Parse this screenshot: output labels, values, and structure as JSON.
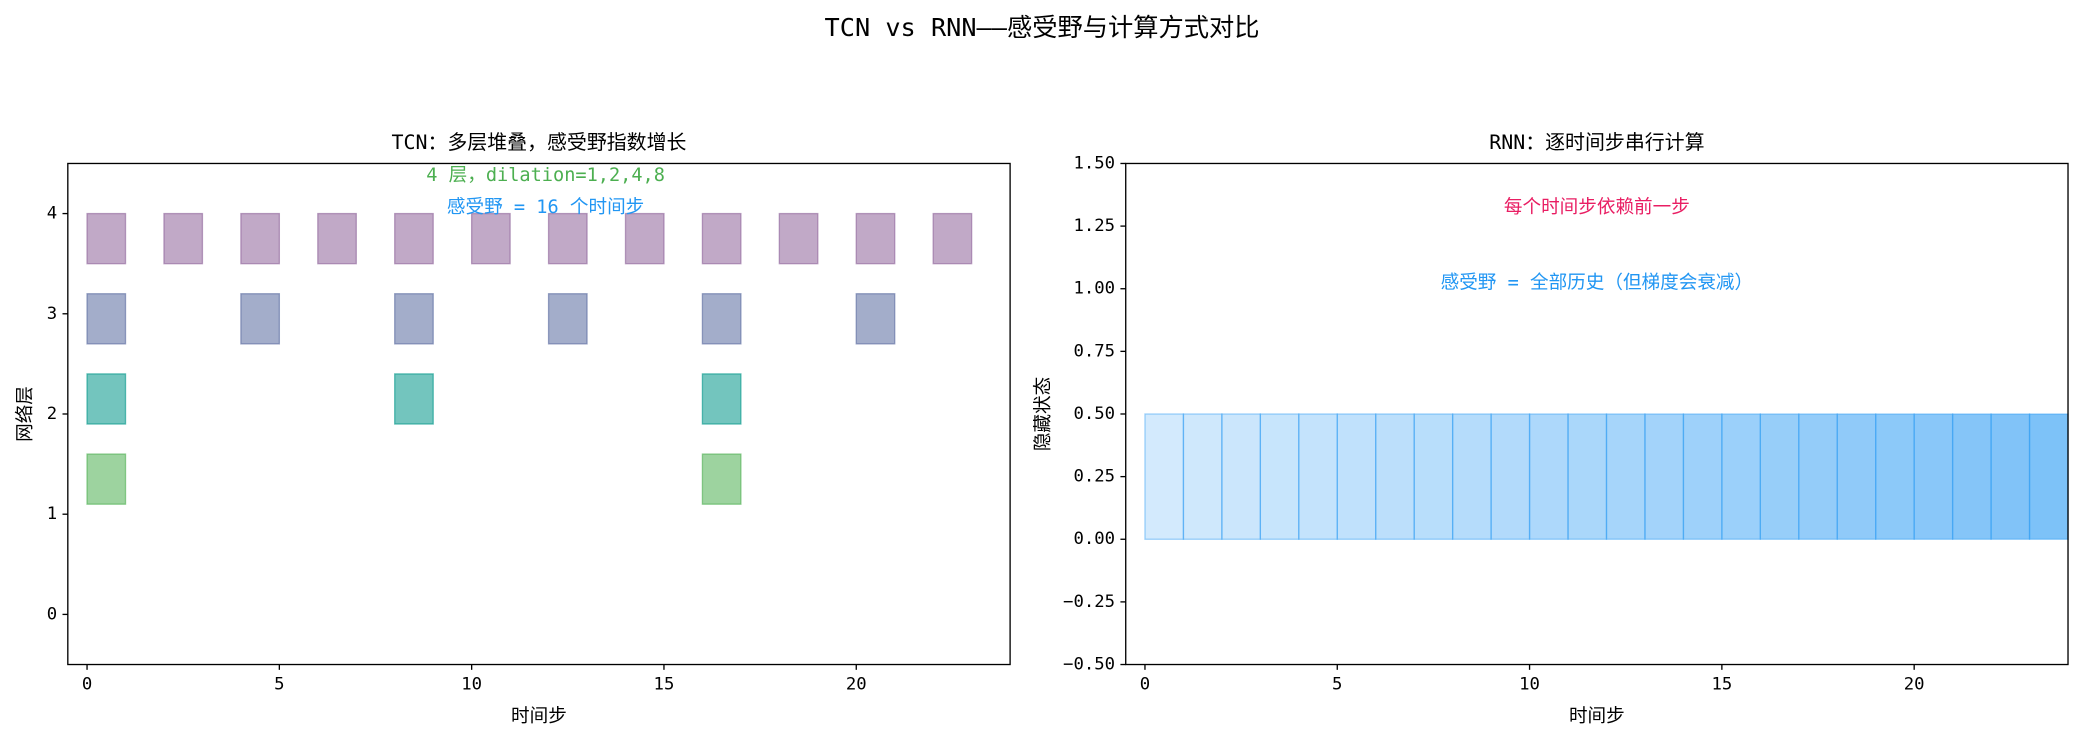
{
  "suptitle": "TCN vs RNN——感受野与计算方式对比",
  "chart_data": [
    {
      "type": "rectangles",
      "title": "TCN：多层堆叠，感受野指数增长",
      "xlabel": "时间步",
      "ylabel": "网络层",
      "xlim": [
        -0.5,
        24
      ],
      "ylim": [
        -0.5,
        4.5
      ],
      "xticks": [
        0,
        5,
        10,
        15,
        20
      ],
      "yticks": [
        0,
        1,
        2,
        3,
        4
      ],
      "width": 1,
      "height": 0.5,
      "series": [
        {
          "color": "#4caf50",
          "x": [
            0,
            16
          ],
          "values": [
            1.1,
            1.1
          ]
        },
        {
          "color": "#009688",
          "x": [
            0,
            8,
            16
          ],
          "values": [
            1.9,
            1.9,
            1.9
          ]
        },
        {
          "color": "#58699f",
          "x": [
            0,
            4,
            8,
            12,
            16,
            20
          ],
          "values": [
            2.7,
            2.7,
            2.7,
            2.7,
            2.7,
            2.7
          ]
        },
        {
          "color": "#8e6299",
          "x": [
            0,
            2,
            4,
            6,
            8,
            10,
            12,
            14,
            16,
            18,
            20,
            22
          ],
          "values": [
            3.5,
            3.5,
            3.5,
            3.5,
            3.5,
            3.5,
            3.5,
            3.5,
            3.5,
            3.5,
            3.5,
            3.5
          ]
        }
      ],
      "annotations": [
        {
          "text": "4 层，dilation=1,2,4,8",
          "color": "#4caf50"
        },
        {
          "text": "感受野 = 16 个时间步",
          "color": "#2196f3"
        }
      ]
    },
    {
      "type": "bar",
      "title": "RNN：逐时间步串行计算",
      "xlabel": "时间步",
      "ylabel": "隐藏状态",
      "xlim": [
        -0.5,
        24
      ],
      "ylim": [
        -0.5,
        1.5
      ],
      "xticks": [
        0,
        5,
        10,
        15,
        20
      ],
      "yticks": [
        {
          "value": -0.5,
          "label": "−0.50"
        },
        {
          "value": -0.25,
          "label": "−0.25"
        },
        {
          "value": 0,
          "label": "0.00"
        },
        {
          "value": 0.25,
          "label": "0.25"
        },
        {
          "value": 0.5,
          "label": "0.50"
        },
        {
          "value": 0.75,
          "label": "0.75"
        },
        {
          "value": 1,
          "label": "1.00"
        },
        {
          "value": 1.25,
          "label": "1.25"
        },
        {
          "value": 1.5,
          "label": "1.50"
        }
      ],
      "color": "#2196f3",
      "width": 1,
      "x": [
        0,
        1,
        2,
        3,
        4,
        5,
        6,
        7,
        8,
        9,
        10,
        11,
        12,
        13,
        14,
        15,
        16,
        17,
        18,
        19,
        20,
        21,
        22,
        23
      ],
      "values": [
        0.5,
        0.5,
        0.5,
        0.5,
        0.5,
        0.5,
        0.5,
        0.5,
        0.5,
        0.5,
        0.5,
        0.5,
        0.5,
        0.5,
        0.5,
        0.5,
        0.5,
        0.5,
        0.5,
        0.5,
        0.5,
        0.5,
        0.5,
        0.5
      ],
      "annotations": [
        {
          "text": "每个时间步依赖前一步",
          "color": "#e91e63"
        },
        {
          "text": "感受野 = 全部历史（但梯度会衰减）",
          "color": "#2196f3"
        }
      ]
    }
  ]
}
